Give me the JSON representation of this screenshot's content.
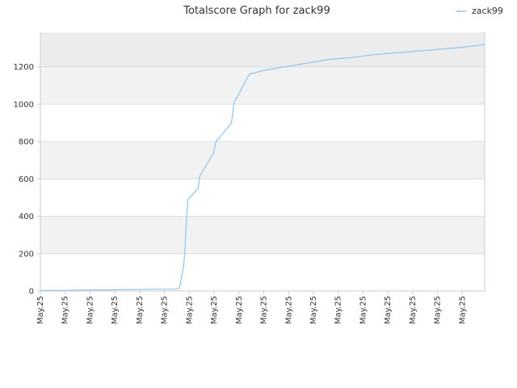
{
  "chart_data": {
    "type": "line",
    "title": "Totalscore Graph for zack99",
    "xlabel": "",
    "ylabel": "",
    "legend_position": "top-right",
    "grid": true,
    "ylim": [
      0,
      1385
    ],
    "y_ticks": [
      0,
      200,
      400,
      600,
      800,
      1000,
      1200
    ],
    "x_tick_labels": [
      "May.25",
      "May.25",
      "May.25",
      "May.25",
      "May.25",
      "May.25",
      "May.25",
      "May.25",
      "May.25",
      "May.25",
      "May.25",
      "May.25",
      "May.25",
      "May.25",
      "May.25",
      "May.25",
      "May.25",
      "May.25",
      "May.25"
    ],
    "colors": {
      "series": "#90c4f0",
      "band_dark": "#f2f2f2",
      "band_top": "#ececec",
      "grid": "#dddddd",
      "axis": "#cccccc"
    },
    "series": [
      {
        "name": "zack99",
        "x": [
          0,
          0.05,
          0.09,
          0.15,
          0.18,
          0.21,
          0.25,
          0.3,
          0.312,
          0.315,
          0.318,
          0.322,
          0.325,
          0.327,
          0.329,
          0.332,
          0.34,
          0.355,
          0.358,
          0.365,
          0.38,
          0.39,
          0.395,
          0.42,
          0.43,
          0.433,
          0.436,
          0.45,
          0.47,
          0.5,
          0.55,
          0.6,
          0.65,
          0.7,
          0.75,
          0.8,
          0.85,
          0.9,
          0.95,
          1.0
        ],
        "y": [
          2,
          3,
          5,
          6,
          7,
          8,
          9,
          10,
          12,
          40,
          80,
          130,
          200,
          300,
          400,
          490,
          510,
          550,
          610,
          640,
          700,
          740,
          800,
          870,
          900,
          950,
          1010,
          1070,
          1160,
          1180,
          1200,
          1220,
          1240,
          1250,
          1265,
          1275,
          1285,
          1295,
          1305,
          1320
        ]
      }
    ]
  }
}
